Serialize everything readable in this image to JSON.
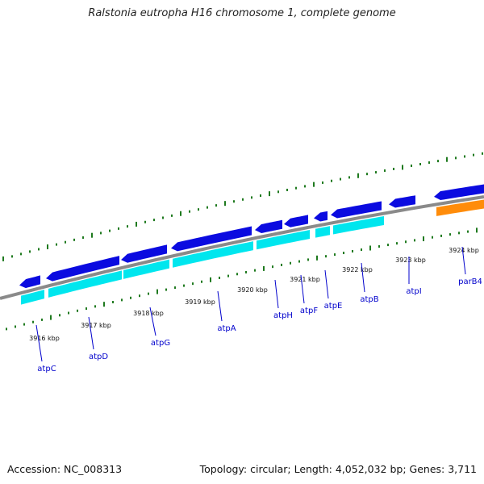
{
  "title": "Ralstonia eutropha H16 chromosome 1, complete genome",
  "footer": {
    "accession": "Accession: NC_008313",
    "summary": "Topology: circular; Length: 4,052,032 bp; Genes: 3,711"
  },
  "colors": {
    "backbone": "#8a8a8a",
    "forward_cds": "#0b0be0",
    "reverse_cds": "#00e6ee",
    "other_cds": "#ff8c0a",
    "gc_ticks": "#1f7a1f",
    "label": "#0000cc",
    "leader": "#0000cc"
  },
  "scale_labels": [
    {
      "text": "3916 kbp"
    },
    {
      "text": "3917 kbp"
    },
    {
      "text": "3918 kbp"
    },
    {
      "text": "3919 kbp"
    },
    {
      "text": "3920 kbp"
    },
    {
      "text": "3921 kbp"
    },
    {
      "text": "3922 kbp"
    },
    {
      "text": "3923 kbp"
    },
    {
      "text": "3924 kbp"
    }
  ],
  "genes": [
    {
      "name": "atpC"
    },
    {
      "name": "atpD"
    },
    {
      "name": "atpG"
    },
    {
      "name": "atpA"
    },
    {
      "name": "atpH"
    },
    {
      "name": "atpF"
    },
    {
      "name": "atpE"
    },
    {
      "name": "atpB"
    },
    {
      "name": "atpI"
    },
    {
      "name": "parB4"
    }
  ]
}
